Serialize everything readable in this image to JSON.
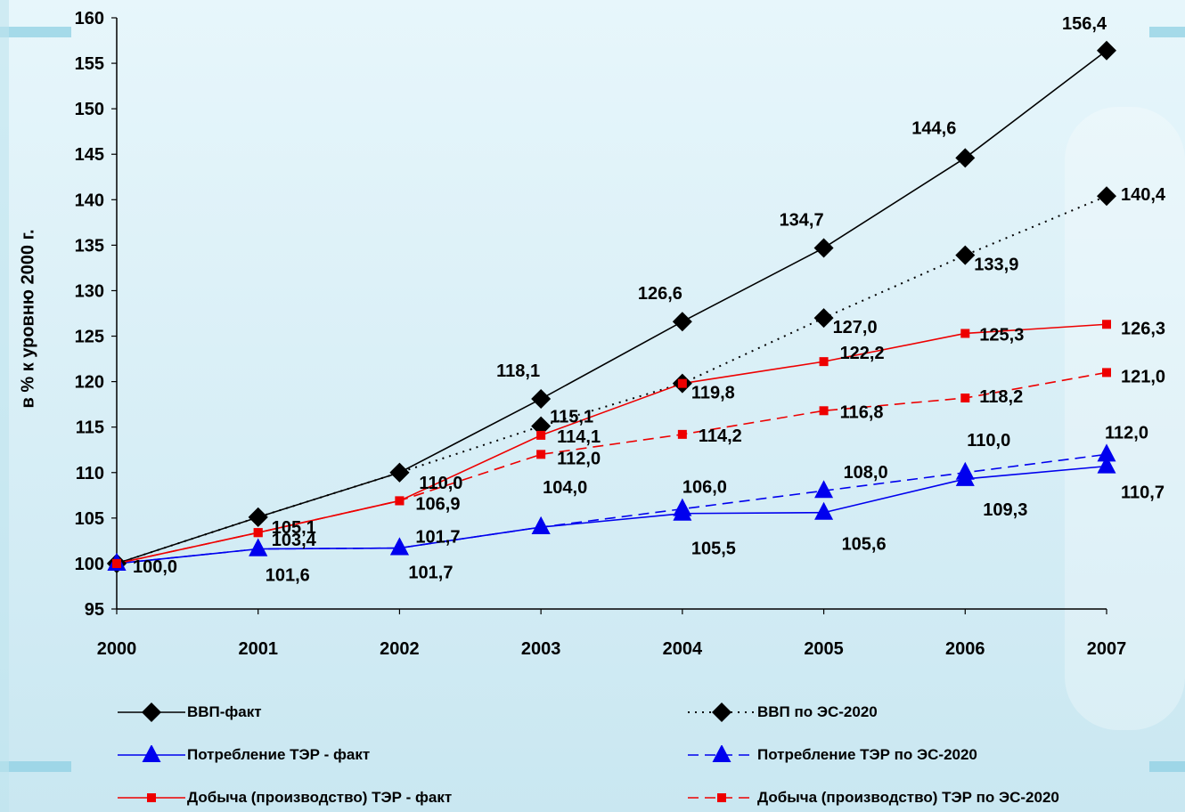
{
  "chart_data": {
    "type": "line",
    "ylabel": "в % к уровню 2000 г.",
    "xlabel": "",
    "title": "",
    "categories": [
      "2000",
      "2001",
      "2002",
      "2003",
      "2004",
      "2005",
      "2006",
      "2007"
    ],
    "ylim": [
      95,
      160
    ],
    "yticks": [
      95,
      100,
      105,
      110,
      115,
      120,
      125,
      130,
      135,
      140,
      145,
      150,
      155,
      160
    ],
    "grid": false,
    "series": [
      {
        "name": "ВВП-факт",
        "color": "#000000",
        "marker": "diamond",
        "dashed": false,
        "dotted": false,
        "values": [
          100.0,
          105.1,
          110.0,
          118.1,
          126.6,
          134.7,
          144.6,
          156.4
        ],
        "labels": [
          "",
          "",
          "",
          "118,1",
          "126,6",
          "134,7",
          "144,6",
          "156,4"
        ]
      },
      {
        "name": "ВВП по ЭС-2020",
        "color": "#000000",
        "marker": "diamond",
        "dashed": false,
        "dotted": true,
        "values": [
          100.0,
          105.1,
          110.0,
          115.1,
          119.8,
          127.0,
          133.9,
          140.4
        ],
        "labels": [
          "",
          "105,1",
          "110,0",
          "115,1",
          "119,8",
          "127,0",
          "133,9",
          "140,4"
        ]
      },
      {
        "name": "Потребление ТЭР - факт",
        "color": "#0000ee",
        "marker": "triangle",
        "dashed": false,
        "dotted": false,
        "values": [
          100.0,
          101.6,
          101.7,
          104.0,
          105.5,
          105.6,
          109.3,
          110.7
        ],
        "labels": [
          "",
          "101,6",
          "101,7",
          "",
          "105,5",
          "105,6",
          "109,3",
          "110,7"
        ]
      },
      {
        "name": "Потребление ТЭР по ЭС-2020",
        "color": "#0000ee",
        "marker": "triangle",
        "dashed": true,
        "dotted": false,
        "values": [
          100.0,
          101.6,
          101.7,
          104.0,
          106.0,
          108.0,
          110.0,
          112.0
        ],
        "labels": [
          "",
          "",
          "101,7",
          "104,0",
          "106,0",
          "108,0",
          "110,0",
          "112,0"
        ]
      },
      {
        "name": "Добыча (производство) ТЭР - факт",
        "color": "#ee0000",
        "marker": "square",
        "dashed": false,
        "dotted": false,
        "values": [
          100.0,
          103.4,
          106.9,
          114.1,
          119.8,
          122.2,
          125.3,
          126.3
        ],
        "labels": [
          "100,0",
          "103,4",
          "106,9",
          "114,1",
          "",
          "122,2",
          "125,3",
          "126,3"
        ]
      },
      {
        "name": "Добыча (производство) ТЭР по ЭС-2020",
        "color": "#ee0000",
        "marker": "square",
        "dashed": true,
        "dotted": false,
        "values": [
          100.0,
          103.4,
          106.9,
          112.0,
          114.2,
          116.8,
          118.2,
          121.0
        ],
        "labels": [
          "",
          "",
          "",
          "112,0",
          "114,2",
          "116,8",
          "118,2",
          "121,0"
        ]
      }
    ]
  }
}
